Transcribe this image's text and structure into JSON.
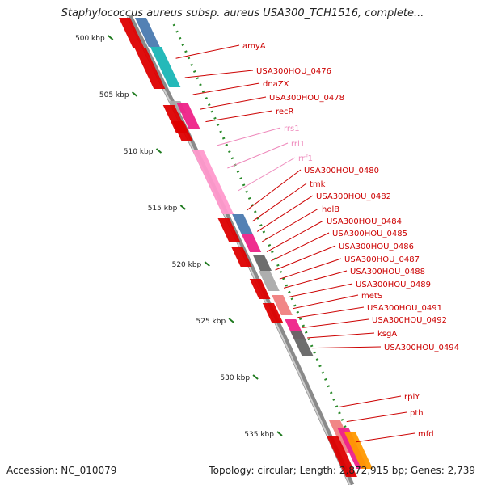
{
  "title": "Staphylococcus aureus subsp. aureus USA300_TCH1516, complete...",
  "accession": "Accession: NC_010079",
  "topology": "Topology: circular; Length: 2,872,915 bp; Genes: 2,739",
  "scale": [
    {
      "label": "500 kbp",
      "pos": 500
    },
    {
      "label": "505 kbp",
      "pos": 505
    },
    {
      "label": "510 kbp",
      "pos": 510
    },
    {
      "label": "515 kbp",
      "pos": 515
    },
    {
      "label": "520 kbp",
      "pos": 520
    },
    {
      "label": "525 kbp",
      "pos": 525
    },
    {
      "label": "530 kbp",
      "pos": 530
    },
    {
      "label": "535 kbp",
      "pos": 535
    }
  ],
  "genes": [
    {
      "name": "amyA",
      "pos": 501.8,
      "color": "#cc0000"
    },
    {
      "name": "USA300HOU_0476",
      "pos": 503.5,
      "color": "#cc0000"
    },
    {
      "name": "dnaZX",
      "pos": 505.0,
      "color": "#cc0000"
    },
    {
      "name": "USA300HOU_0478",
      "pos": 506.3,
      "color": "#cc0000"
    },
    {
      "name": "recR",
      "pos": 507.4,
      "color": "#cc0000"
    },
    {
      "name": "rrs1",
      "pos": 509.5,
      "color": "#ee88bb"
    },
    {
      "name": "rrl1",
      "pos": 511.5,
      "color": "#ee88bb"
    },
    {
      "name": "rrf1",
      "pos": 513.5,
      "color": "#ee88bb"
    },
    {
      "name": "USA300HOU_0480",
      "pos": 515.2,
      "color": "#cc0000"
    },
    {
      "name": "tmk",
      "pos": 516.2,
      "color": "#cc0000"
    },
    {
      "name": "USA300HOU_0482",
      "pos": 517.1,
      "color": "#cc0000"
    },
    {
      "name": "holB",
      "pos": 518.0,
      "color": "#cc0000"
    },
    {
      "name": "USA300HOU_0484",
      "pos": 518.9,
      "color": "#cc0000"
    },
    {
      "name": "USA300HOU_0485",
      "pos": 519.7,
      "color": "#cc0000"
    },
    {
      "name": "USA300HOU_0486",
      "pos": 520.5,
      "color": "#cc0000"
    },
    {
      "name": "USA300HOU_0487",
      "pos": 521.3,
      "color": "#cc0000"
    },
    {
      "name": "USA300HOU_0488",
      "pos": 522.1,
      "color": "#cc0000"
    },
    {
      "name": "USA300HOU_0489",
      "pos": 522.9,
      "color": "#cc0000"
    },
    {
      "name": "metS",
      "pos": 523.9,
      "color": "#cc0000"
    },
    {
      "name": "USA300HOU_0491",
      "pos": 524.7,
      "color": "#cc0000"
    },
    {
      "name": "USA300HOU_0492",
      "pos": 525.6,
      "color": "#cc0000"
    },
    {
      "name": "ksgA",
      "pos": 526.5,
      "color": "#cc0000"
    },
    {
      "name": "USA300HOU_0494",
      "pos": 527.4,
      "color": "#cc0000"
    },
    {
      "name": "rplY",
      "pos": 532.6,
      "color": "#cc0000"
    },
    {
      "name": "pth",
      "pos": 533.9,
      "color": "#cc0000"
    },
    {
      "name": "mfd",
      "pos": 535.7,
      "color": "#cc0000"
    }
  ]
}
